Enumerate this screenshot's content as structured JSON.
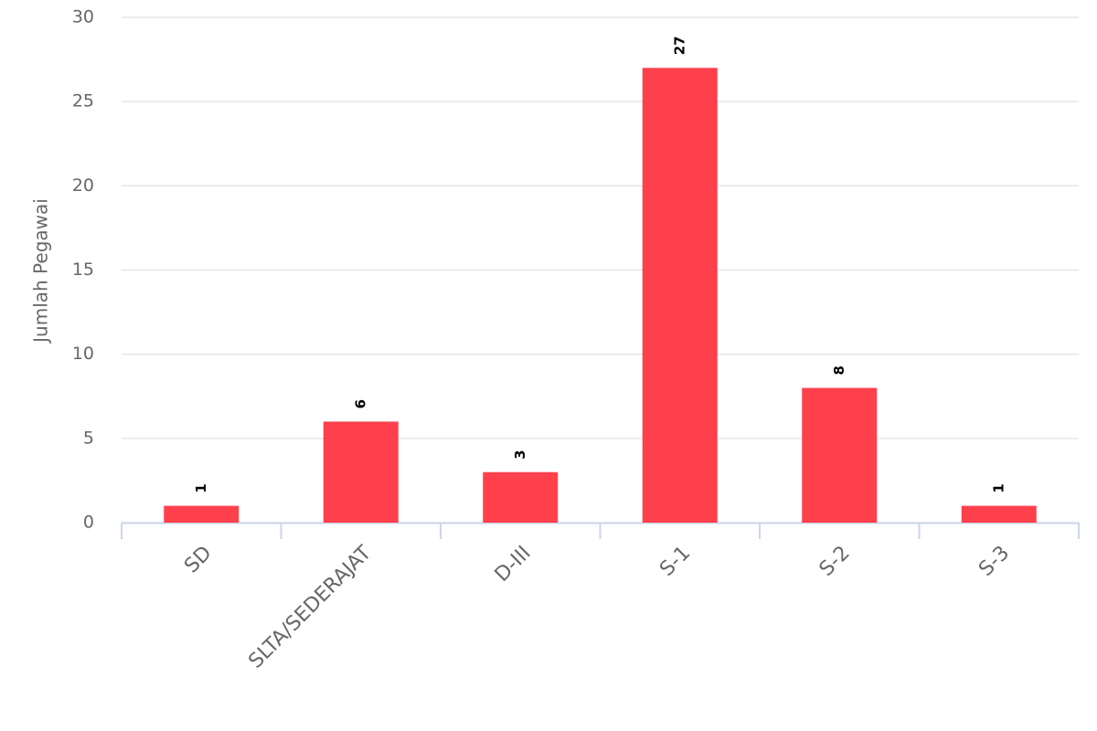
{
  "chart_data": {
    "type": "bar",
    "y_label": "Jumlah Pegawai",
    "categories": [
      "SD",
      "SLTA/SEDERAJAT",
      "D-III",
      "S-1",
      "S-2",
      "S-3"
    ],
    "values": [
      1,
      6,
      3,
      27,
      8,
      1
    ],
    "color": "#fe404d",
    "ylim": [
      0,
      30
    ],
    "yticks": [
      0,
      5,
      10,
      15,
      20,
      25,
      30
    ],
    "grid": true
  }
}
